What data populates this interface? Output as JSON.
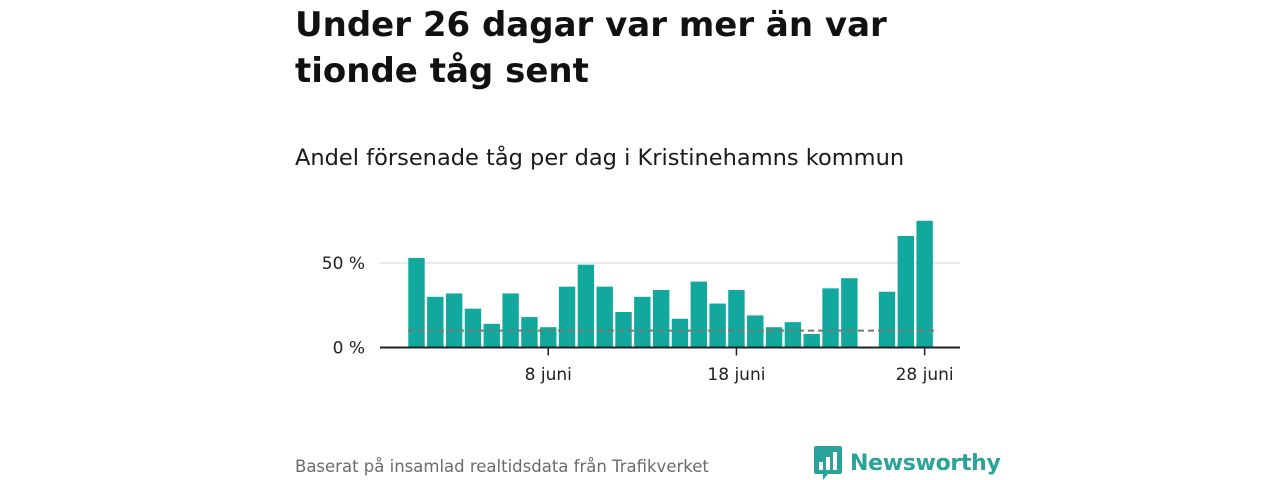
{
  "title": "Under 26 dagar var mer än var tionde tåg sent",
  "subtitle": "Andel försenade tåg per dag i Kristinehamns kommun",
  "source": "Baserat på insamlad realtidsdata från Trafikverket",
  "brand": {
    "name": "Newsworthy",
    "icon": "newsworthy-logo-icon",
    "color": "#2aa39a"
  },
  "colors": {
    "bar": "#13a89e",
    "reference_line": "#777777",
    "grid": "#dddddd",
    "axis": "#222222"
  },
  "chart_data": {
    "type": "bar",
    "x_unit": "day of June",
    "x": [
      1,
      2,
      3,
      4,
      5,
      6,
      7,
      8,
      9,
      10,
      11,
      12,
      13,
      14,
      15,
      16,
      17,
      18,
      19,
      20,
      21,
      22,
      23,
      24,
      25,
      26,
      27,
      28,
      29
    ],
    "values": [
      53,
      30,
      32,
      23,
      14,
      32,
      18,
      12,
      36,
      49,
      36,
      21,
      30,
      34,
      17,
      39,
      26,
      34,
      19,
      12,
      15,
      8,
      35,
      41,
      null,
      33,
      66,
      75,
      null
    ],
    "reference_line": {
      "value": 10,
      "style": "dashed"
    },
    "y_ticks": [
      {
        "value": 0,
        "label": "0 %"
      },
      {
        "value": 50,
        "label": "50 %"
      }
    ],
    "x_ticks": [
      {
        "value": 8,
        "label": "8 juni"
      },
      {
        "value": 18,
        "label": "18 juni"
      },
      {
        "value": 28,
        "label": "28 juni"
      }
    ],
    "ylim": [
      0,
      80
    ],
    "xlim": [
      0.5,
      29.5
    ],
    "grid": "horizontal",
    "xlabel": "",
    "ylabel": ""
  }
}
